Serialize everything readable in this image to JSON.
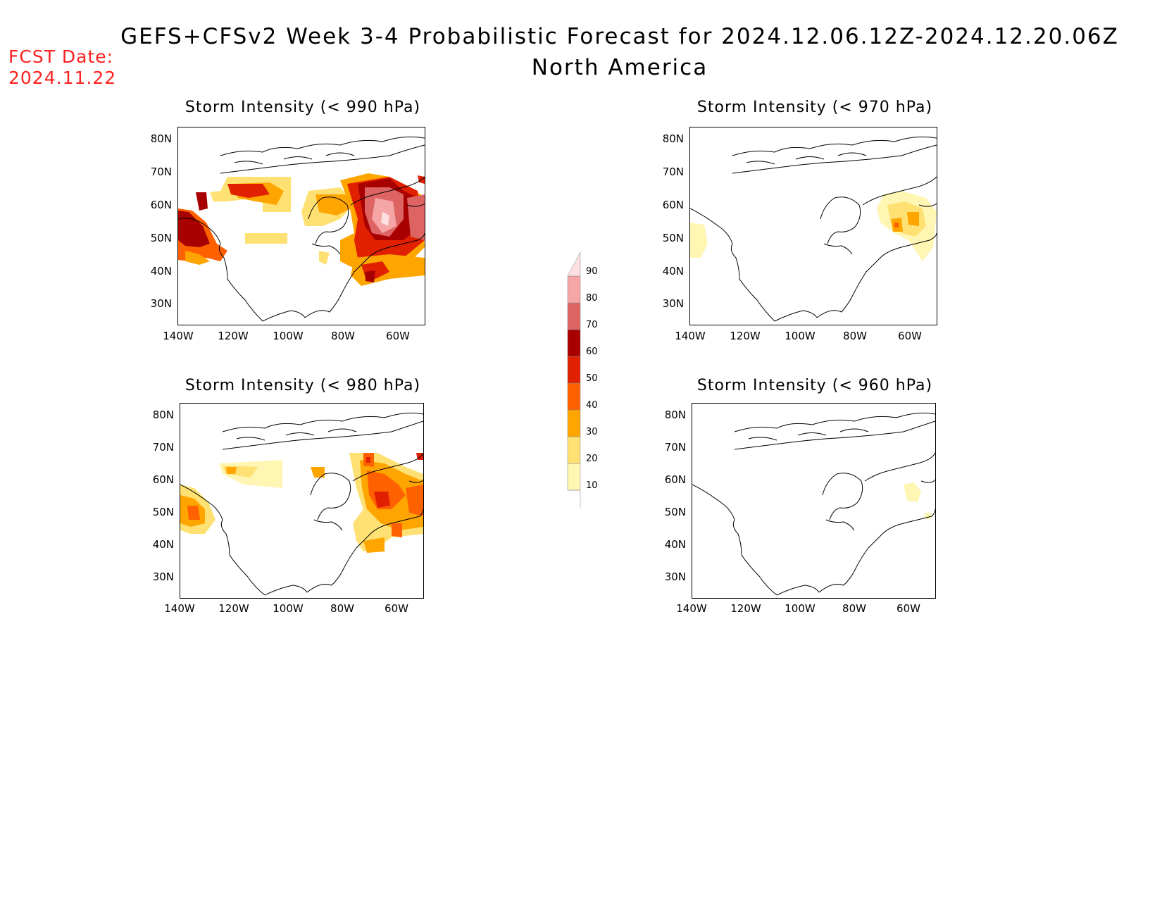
{
  "header": {
    "title_line1": "GEFS+CFSv2 Week 3-4 Probabilistic Forecast for 2024.12.06.12Z-2024.12.20.06Z",
    "title_line2": "North America"
  },
  "fcst": {
    "label": "FCST Date:",
    "date": "2024.11.22"
  },
  "axes": {
    "lat_labels": [
      "80N",
      "70N",
      "60N",
      "50N",
      "40N",
      "30N"
    ],
    "lon_labels": [
      "140W",
      "120W",
      "100W",
      "80W",
      "60W"
    ]
  },
  "panels": [
    {
      "title": "Storm Intensity (< 990 hPa)"
    },
    {
      "title": "Storm Intensity (< 970 hPa)"
    },
    {
      "title": "Storm Intensity (< 980 hPa)"
    },
    {
      "title": "Storm Intensity (< 960 hPa)"
    }
  ],
  "colorbar": {
    "levels": [
      "10",
      "20",
      "30",
      "40",
      "50",
      "60",
      "70",
      "80",
      "90"
    ],
    "colors": [
      "#fff6b4",
      "#ffe173",
      "#ffa500",
      "#ff6000",
      "#e02000",
      "#a80000",
      "#de6464",
      "#f5a5a5",
      "#fde0e0"
    ]
  }
}
